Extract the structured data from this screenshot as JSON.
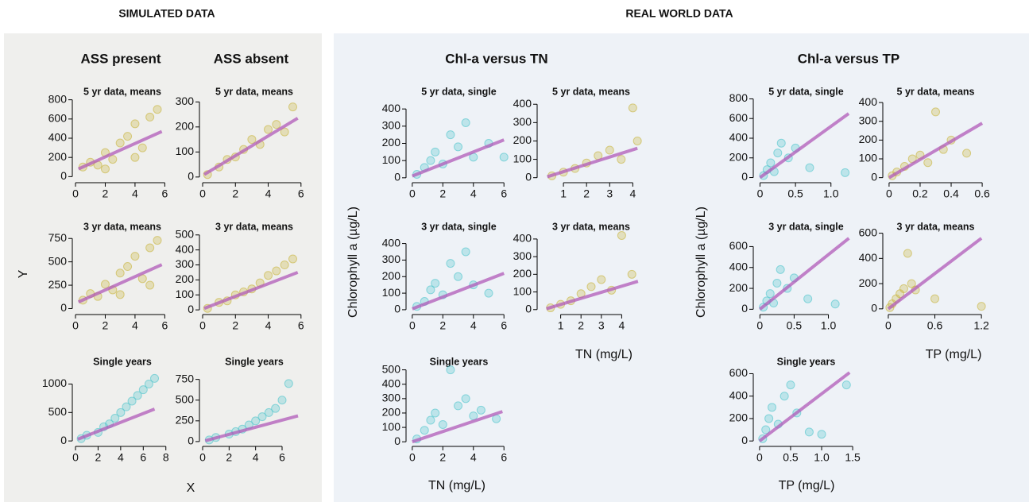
{
  "sections": [
    "SIMULATED DATA",
    "REAL WORLD DATA"
  ],
  "column_titles": [
    "ASS present",
    "ASS absent",
    "Chl-a versus TN",
    "Chl-a versus TP"
  ],
  "axis_labels": {
    "sim_y": "Y",
    "sim_x": "X",
    "tn_y": "Chlorophyll a (µg/L)",
    "tn_x_1": "TN (mg/L)",
    "tn_x_2": "TN (mg/L)",
    "tp_y": "Chlorophyll a (µg/L)",
    "tp_x_1": "TP (mg/L)",
    "tp_x_2": "TP (mg/L)"
  },
  "chart_data": [
    {
      "type": "scatter",
      "title": "5 yr data, means",
      "xlim": [
        0,
        6.3
      ],
      "ylim": [
        -30,
        830
      ],
      "xticks": [
        0,
        2,
        4,
        6
      ],
      "yticks": [
        0,
        200,
        400,
        600,
        800
      ],
      "x": [
        0.5,
        1,
        1.5,
        2,
        2.5,
        3,
        3.5,
        4,
        4.5,
        5,
        5.5,
        2,
        4
      ],
      "y": [
        100,
        150,
        120,
        250,
        180,
        350,
        420,
        550,
        300,
        620,
        700,
        80,
        200
      ],
      "fit_x": [
        0.2,
        5.8
      ],
      "fit_y": [
        80,
        470
      ],
      "color": "#c8b43c",
      "line_color": "#b05ab8"
    },
    {
      "type": "scatter",
      "title": "5 yr data, means",
      "xlim": [
        0,
        6.3
      ],
      "ylim": [
        -10,
        320
      ],
      "xticks": [
        0,
        2,
        4,
        6
      ],
      "yticks": [
        0,
        100,
        200,
        300
      ],
      "x": [
        0.3,
        1,
        1.5,
        2,
        2.5,
        3,
        3.5,
        4,
        4.5,
        5,
        5.5
      ],
      "y": [
        10,
        40,
        70,
        80,
        110,
        150,
        130,
        190,
        210,
        180,
        280
      ],
      "fit_x": [
        0.1,
        5.8
      ],
      "fit_y": [
        10,
        235
      ],
      "color": "#c8b43c",
      "line_color": "#b05ab8"
    },
    {
      "type": "scatter",
      "title": "3 yr data, means",
      "xlim": [
        0,
        6.3
      ],
      "ylim": [
        -30,
        820
      ],
      "xticks": [
        0,
        2,
        4,
        6
      ],
      "yticks": [
        0,
        250,
        500,
        750
      ],
      "x": [
        0.5,
        1,
        1.5,
        2,
        2.5,
        3,
        3.5,
        4,
        4.5,
        5,
        5.5,
        3,
        5
      ],
      "y": [
        90,
        160,
        130,
        260,
        200,
        380,
        450,
        560,
        320,
        650,
        730,
        150,
        250
      ],
      "fit_x": [
        0.2,
        5.8
      ],
      "fit_y": [
        70,
        470
      ],
      "color": "#c8b43c",
      "line_color": "#b05ab8"
    },
    {
      "type": "scatter",
      "title": "3 yr data, means",
      "xlim": [
        0,
        6.3
      ],
      "ylim": [
        -10,
        520
      ],
      "xticks": [
        0,
        2,
        4,
        6
      ],
      "yticks": [
        0,
        100,
        200,
        300,
        400,
        500
      ],
      "x": [
        0.3,
        1,
        1.5,
        2,
        2.5,
        3,
        3.5,
        4,
        4.5,
        5,
        5.5
      ],
      "y": [
        10,
        50,
        60,
        100,
        120,
        140,
        180,
        230,
        260,
        300,
        340
      ],
      "fit_x": [
        0.1,
        5.8
      ],
      "fit_y": [
        10,
        250
      ],
      "color": "#c8b43c",
      "line_color": "#b05ab8"
    },
    {
      "type": "scatter",
      "title": "Single years",
      "xlim": [
        0,
        8.3
      ],
      "ylim": [
        -40,
        1300
      ],
      "xticks": [
        0,
        2,
        4,
        6,
        8
      ],
      "yticks": [
        0,
        500,
        1000
      ],
      "x": [
        0.5,
        1,
        2,
        2.5,
        3,
        3.5,
        4,
        4.5,
        5,
        5.5,
        6,
        6.5,
        7
      ],
      "y": [
        40,
        100,
        150,
        250,
        300,
        400,
        500,
        600,
        700,
        800,
        900,
        1000,
        1100
      ],
      "fit_x": [
        0.2,
        7
      ],
      "fit_y": [
        30,
        560
      ],
      "color": "#4cc4cc",
      "line_color": "#b05ab8"
    },
    {
      "type": "scatter",
      "title": "Single years",
      "xlim": [
        0,
        7.8
      ],
      "ylim": [
        -20,
        900
      ],
      "xticks": [
        0,
        2,
        4,
        6
      ],
      "yticks": [
        0,
        250,
        500,
        750
      ],
      "x": [
        0.5,
        1,
        2,
        2.5,
        3,
        3.5,
        4,
        4.5,
        5,
        5.5,
        6,
        6.5
      ],
      "y": [
        20,
        50,
        90,
        120,
        150,
        200,
        250,
        300,
        350,
        400,
        500,
        700
      ],
      "fit_x": [
        0.2,
        7.2
      ],
      "fit_y": [
        10,
        310
      ],
      "color": "#4cc4cc",
      "line_color": "#b05ab8"
    },
    {
      "type": "scatter",
      "title": "5 yr data, single",
      "xlim": [
        -0.2,
        6.3
      ],
      "ylim": [
        -10,
        470
      ],
      "xticks": [
        0,
        2,
        4,
        6
      ],
      "yticks": [
        0,
        100,
        200,
        300,
        400
      ],
      "x": [
        0.3,
        0.8,
        1.2,
        1.5,
        2,
        2.5,
        3,
        3.5,
        4,
        5,
        6
      ],
      "y": [
        20,
        60,
        100,
        150,
        80,
        250,
        180,
        320,
        120,
        200,
        120
      ],
      "fit_x": [
        0,
        6
      ],
      "fit_y": [
        10,
        220
      ],
      "color": "#4cc4cc",
      "line_color": "#b05ab8"
    },
    {
      "type": "scatter",
      "title": "5 yr data, means",
      "xlim": [
        0,
        4.4
      ],
      "ylim": [
        -10,
        440
      ],
      "xticks": [
        1,
        2,
        3,
        4
      ],
      "yticks": [
        0,
        100,
        200,
        300,
        400
      ],
      "x": [
        0.5,
        1,
        1.5,
        2,
        2.5,
        3,
        3.5,
        4,
        4.2
      ],
      "y": [
        10,
        30,
        50,
        80,
        120,
        150,
        100,
        380,
        200
      ],
      "fit_x": [
        0.3,
        4.2
      ],
      "fit_y": [
        5,
        160
      ],
      "color": "#c8b43c",
      "line_color": "#b05ab8"
    },
    {
      "type": "scatter",
      "title": "3 yr data, single",
      "xlim": [
        -0.2,
        6.3
      ],
      "ylim": [
        -10,
        470
      ],
      "xticks": [
        0,
        2,
        4,
        6
      ],
      "yticks": [
        0,
        100,
        200,
        300,
        400
      ],
      "x": [
        0.3,
        0.8,
        1.2,
        1.5,
        2,
        2.5,
        3,
        3.5,
        4,
        5
      ],
      "y": [
        20,
        50,
        120,
        160,
        90,
        280,
        200,
        350,
        150,
        100
      ],
      "fit_x": [
        0,
        6
      ],
      "fit_y": [
        5,
        220
      ],
      "color": "#4cc4cc",
      "line_color": "#b05ab8"
    },
    {
      "type": "scatter",
      "title": "3 yr data, means",
      "xlim": [
        0,
        5
      ],
      "ylim": [
        -10,
        440
      ],
      "xticks": [
        1,
        2,
        3,
        4
      ],
      "yticks": [
        0,
        100,
        200,
        300,
        400
      ],
      "x": [
        0.5,
        1,
        1.5,
        2,
        2.5,
        3,
        3.5,
        4,
        4.5
      ],
      "y": [
        10,
        30,
        50,
        90,
        130,
        170,
        110,
        420,
        200
      ],
      "fit_x": [
        0.3,
        4.8
      ],
      "fit_y": [
        5,
        160
      ],
      "color": "#c8b43c",
      "line_color": "#b05ab8"
    },
    {
      "type": "scatter",
      "title": "Single years",
      "xlim": [
        -0.2,
        6.3
      ],
      "ylim": [
        -10,
        520
      ],
      "xticks": [
        0,
        2,
        4,
        6
      ],
      "yticks": [
        0,
        100,
        200,
        300,
        400,
        500
      ],
      "x": [
        0.3,
        0.8,
        1.2,
        1.5,
        2,
        2.5,
        3,
        3.5,
        4,
        4.5,
        5.5
      ],
      "y": [
        20,
        80,
        150,
        200,
        120,
        500,
        250,
        300,
        180,
        220,
        160
      ],
      "fit_x": [
        0,
        5.9
      ],
      "fit_y": [
        0,
        210
      ],
      "color": "#4cc4cc",
      "line_color": "#b05ab8"
    },
    {
      "type": "scatter",
      "title": "5 yr data, single",
      "xlim": [
        -0.05,
        1.35
      ],
      "ylim": [
        -20,
        820
      ],
      "xticks": [
        0,
        0.5,
        {
          "value": 1,
          "label": "1.0"
        }
      ],
      "yticks": [
        0,
        200,
        400,
        600,
        800
      ],
      "x": [
        0.05,
        0.1,
        0.15,
        0.2,
        0.25,
        0.3,
        0.4,
        0.5,
        0.7,
        1.2
      ],
      "y": [
        20,
        80,
        150,
        60,
        250,
        350,
        200,
        300,
        100,
        50
      ],
      "fit_x": [
        0,
        1.25
      ],
      "fit_y": [
        0,
        650
      ],
      "color": "#4cc4cc",
      "line_color": "#b05ab8"
    },
    {
      "type": "scatter",
      "title": "5 yr data, means",
      "xlim": [
        -0.02,
        0.62
      ],
      "ylim": [
        -10,
        430
      ],
      "xticks": [
        0,
        0.2,
        0.4,
        0.6
      ],
      "yticks": [
        0,
        100,
        200,
        300,
        400
      ],
      "x": [
        0.02,
        0.05,
        0.1,
        0.15,
        0.2,
        0.25,
        0.3,
        0.35,
        0.4,
        0.5
      ],
      "y": [
        10,
        30,
        60,
        100,
        120,
        80,
        350,
        150,
        200,
        130
      ],
      "fit_x": [
        0,
        0.6
      ],
      "fit_y": [
        0,
        290
      ],
      "color": "#c8b43c",
      "line_color": "#b05ab8"
    },
    {
      "type": "scatter",
      "title": "3 yr data, single",
      "xlim": [
        -0.05,
        1.4
      ],
      "ylim": [
        -20,
        740
      ],
      "xticks": [
        0,
        0.5,
        {
          "value": 1,
          "label": "1.0"
        }
      ],
      "yticks": [
        0,
        200,
        400,
        600
      ],
      "x": [
        0.05,
        0.1,
        0.15,
        0.2,
        0.25,
        0.3,
        0.4,
        0.5,
        0.7,
        1.1
      ],
      "y": [
        20,
        80,
        150,
        60,
        250,
        380,
        200,
        300,
        100,
        50
      ],
      "fit_x": [
        0,
        1.3
      ],
      "fit_y": [
        0,
        680
      ],
      "color": "#4cc4cc",
      "line_color": "#b05ab8"
    },
    {
      "type": "scatter",
      "title": "3 yr data, means",
      "xlim": [
        -0.03,
        1.25
      ],
      "ylim": [
        -20,
        610
      ],
      "xticks": [
        0,
        0.6,
        1.2
      ],
      "yticks": [
        0,
        200,
        400,
        600
      ],
      "x": [
        0.02,
        0.05,
        0.1,
        0.15,
        0.2,
        0.25,
        0.3,
        0.35,
        0.6,
        1.2
      ],
      "y": [
        10,
        40,
        80,
        120,
        160,
        440,
        200,
        150,
        80,
        20
      ],
      "fit_x": [
        0,
        1.2
      ],
      "fit_y": [
        0,
        560
      ],
      "color": "#c8b43c",
      "line_color": "#b05ab8"
    },
    {
      "type": "scatter",
      "title": "Single years",
      "xlim": [
        -0.05,
        1.55
      ],
      "ylim": [
        -20,
        660
      ],
      "xticks": [
        0,
        0.5,
        {
          "value": 1,
          "label": "1.0"
        },
        1.5
      ],
      "yticks": [
        0,
        200,
        400,
        600
      ],
      "x": [
        0.05,
        0.1,
        0.15,
        0.2,
        0.3,
        0.4,
        0.5,
        0.6,
        0.8,
        1.0,
        1.4
      ],
      "y": [
        20,
        100,
        200,
        300,
        150,
        400,
        500,
        250,
        80,
        60,
        500
      ],
      "fit_x": [
        0,
        1.45
      ],
      "fit_y": [
        0,
        610
      ],
      "color": "#4cc4cc",
      "line_color": "#b05ab8"
    }
  ]
}
